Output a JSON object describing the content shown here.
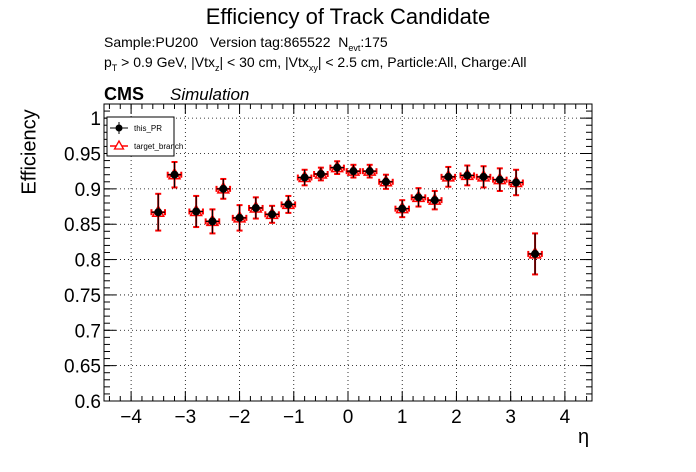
{
  "title": "Efficiency of Track Candidate",
  "info": {
    "sample_label": "Sample:",
    "sample": "PU200",
    "version_label": "Version tag:",
    "version": "865522",
    "nevt_prefix": "N",
    "nevt_sub": "evt",
    "nevt_value": ":175",
    "cut_pt": "p",
    "cut_pt_sub": "T",
    "cut_pt_rest": " > 0.9 GeV, |Vtx",
    "vtxz_sub": "z",
    "vtxz_rest": "| < 30 cm, |Vtx",
    "vtxxy_sub": "xy",
    "vtxxy_rest": "| < 2.5 cm, Particle:All, Charge:All"
  },
  "cms_label": "CMS",
  "simulation_label": "Simulation",
  "colors": {
    "this_PR": "#000000",
    "target_branch": "#ff0000",
    "grid": "#000000",
    "frame": "#000000"
  },
  "chart_data": {
    "type": "scatter",
    "title": "Efficiency of Track Candidate",
    "xlabel": "η",
    "ylabel": "Efficiency",
    "xlim": [
      -4.5,
      4.5
    ],
    "ylim": [
      0.6,
      1.02
    ],
    "grid": true,
    "legend_position": "top-left",
    "x_ticks": [
      -4,
      -3,
      -2,
      -1,
      0,
      1,
      2,
      3,
      4
    ],
    "x_tick_labels": [
      "−4",
      "−3",
      "−2",
      "−1",
      "0",
      "1",
      "2",
      "3",
      "4"
    ],
    "y_ticks": [
      0.6,
      0.65,
      0.7,
      0.75,
      0.8,
      0.85,
      0.9,
      0.95,
      1
    ],
    "y_tick_labels": [
      "0.6",
      "0.65",
      "0.7",
      "0.75",
      "0.8",
      "0.85",
      "0.9",
      "0.95",
      "1"
    ],
    "x_halfwidth": 0.125,
    "x": [
      -3.5,
      -3.2,
      -2.8,
      -2.5,
      -2.3,
      -2.0,
      -1.7,
      -1.4,
      -1.1,
      -0.8,
      -0.5,
      -0.2,
      0.1,
      0.4,
      0.7,
      1.0,
      1.3,
      1.6,
      1.85,
      2.2,
      2.5,
      2.8,
      3.1,
      3.45
    ],
    "series": [
      {
        "name": "this_PR",
        "y": [
          0.867,
          0.92,
          0.868,
          0.854,
          0.9,
          0.859,
          0.873,
          0.864,
          0.878,
          0.916,
          0.921,
          0.93,
          0.925,
          0.925,
          0.91,
          0.872,
          0.888,
          0.884,
          0.917,
          0.919,
          0.917,
          0.913,
          0.909,
          0.808
        ],
        "err": [
          0.026,
          0.018,
          0.022,
          0.017,
          0.014,
          0.018,
          0.015,
          0.012,
          0.012,
          0.011,
          0.009,
          0.009,
          0.009,
          0.009,
          0.01,
          0.012,
          0.013,
          0.013,
          0.014,
          0.014,
          0.015,
          0.016,
          0.018,
          0.029
        ]
      },
      {
        "name": "target_branch",
        "y": [
          0.867,
          0.92,
          0.868,
          0.854,
          0.9,
          0.859,
          0.873,
          0.864,
          0.878,
          0.916,
          0.921,
          0.93,
          0.925,
          0.925,
          0.91,
          0.872,
          0.888,
          0.884,
          0.917,
          0.919,
          0.917,
          0.913,
          0.909,
          0.808
        ],
        "err": [
          0.026,
          0.018,
          0.022,
          0.017,
          0.014,
          0.018,
          0.015,
          0.012,
          0.012,
          0.011,
          0.009,
          0.009,
          0.009,
          0.009,
          0.01,
          0.012,
          0.013,
          0.013,
          0.014,
          0.014,
          0.015,
          0.016,
          0.018,
          0.029
        ]
      }
    ]
  }
}
